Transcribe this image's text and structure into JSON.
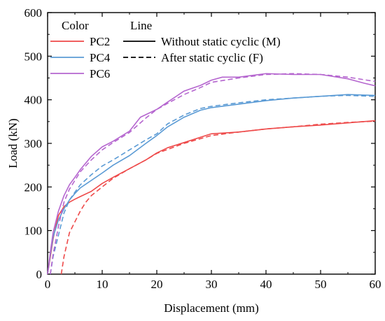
{
  "chart_data": {
    "type": "line",
    "xlabel": "Displacement (mm)",
    "ylabel": "Load (kN)",
    "xlim": [
      0,
      60
    ],
    "ylim": [
      0,
      600
    ],
    "x_ticks": [
      0,
      10,
      20,
      30,
      40,
      50,
      60
    ],
    "y_ticks": [
      0,
      100,
      200,
      300,
      400,
      500,
      600
    ],
    "grid": false,
    "legend": {
      "placement": "top-left",
      "color_header": "Color",
      "line_header": "Line",
      "color_entries": [
        {
          "label": "PC2",
          "color": "#ee4a4a"
        },
        {
          "label": "PC4",
          "color": "#5b9bd5"
        },
        {
          "label": "PC6",
          "color": "#b566cf"
        }
      ],
      "line_entries": [
        {
          "label": "Without static cyclic (M)",
          "style": "solid"
        },
        {
          "label": "After static cyclic (F)",
          "style": "dashed"
        }
      ]
    },
    "series": [
      {
        "specimen": "PC2",
        "condition": "M",
        "color": "#ee4a4a",
        "style": "solid",
        "points": [
          [
            0,
            0
          ],
          [
            0.5,
            40
          ],
          [
            1,
            80
          ],
          [
            1.5,
            110
          ],
          [
            2,
            135
          ],
          [
            3,
            155
          ],
          [
            4,
            165
          ],
          [
            5,
            172
          ],
          [
            6,
            178
          ],
          [
            8,
            190
          ],
          [
            10,
            208
          ],
          [
            12,
            222
          ],
          [
            15,
            242
          ],
          [
            18,
            262
          ],
          [
            20,
            278
          ],
          [
            22,
            290
          ],
          [
            25,
            302
          ],
          [
            28,
            314
          ],
          [
            30,
            322
          ],
          [
            35,
            326
          ],
          [
            40,
            333
          ],
          [
            45,
            338
          ],
          [
            50,
            342
          ],
          [
            55,
            347
          ],
          [
            60,
            352
          ]
        ]
      },
      {
        "specimen": "PC2",
        "condition": "F",
        "color": "#ee4a4a",
        "style": "dashed",
        "points": [
          [
            2.5,
            0
          ],
          [
            3,
            40
          ],
          [
            4,
            95
          ],
          [
            5,
            120
          ],
          [
            6,
            145
          ],
          [
            7,
            165
          ],
          [
            8,
            180
          ],
          [
            10,
            200
          ],
          [
            12,
            220
          ],
          [
            15,
            242
          ],
          [
            18,
            262
          ],
          [
            20,
            277
          ],
          [
            25,
            300
          ],
          [
            30,
            318
          ],
          [
            35,
            326
          ],
          [
            40,
            333
          ],
          [
            45,
            338
          ],
          [
            50,
            344
          ],
          [
            55,
            348
          ],
          [
            60,
            351
          ]
        ]
      },
      {
        "specimen": "PC4",
        "condition": "M",
        "color": "#5b9bd5",
        "style": "solid",
        "points": [
          [
            0,
            0
          ],
          [
            0.5,
            45
          ],
          [
            1,
            85
          ],
          [
            2,
            125
          ],
          [
            3,
            150
          ],
          [
            4,
            170
          ],
          [
            5,
            185
          ],
          [
            6,
            198
          ],
          [
            8,
            215
          ],
          [
            10,
            232
          ],
          [
            12,
            250
          ],
          [
            15,
            272
          ],
          [
            18,
            300
          ],
          [
            20,
            318
          ],
          [
            22,
            338
          ],
          [
            25,
            360
          ],
          [
            28,
            376
          ],
          [
            30,
            382
          ],
          [
            35,
            390
          ],
          [
            40,
            398
          ],
          [
            45,
            404
          ],
          [
            50,
            408
          ],
          [
            55,
            412
          ],
          [
            60,
            410
          ]
        ]
      },
      {
        "specimen": "PC4",
        "condition": "F",
        "color": "#5b9bd5",
        "style": "dashed",
        "points": [
          [
            0.5,
            0
          ],
          [
            1,
            40
          ],
          [
            2,
            90
          ],
          [
            3,
            140
          ],
          [
            4,
            170
          ],
          [
            5,
            188
          ],
          [
            6,
            205
          ],
          [
            8,
            228
          ],
          [
            10,
            248
          ],
          [
            12,
            262
          ],
          [
            15,
            285
          ],
          [
            18,
            308
          ],
          [
            20,
            322
          ],
          [
            22,
            345
          ],
          [
            25,
            365
          ],
          [
            28,
            380
          ],
          [
            30,
            385
          ],
          [
            35,
            393
          ],
          [
            40,
            400
          ],
          [
            45,
            404
          ],
          [
            50,
            408
          ],
          [
            55,
            410
          ],
          [
            60,
            408
          ]
        ]
      },
      {
        "specimen": "PC6",
        "condition": "M",
        "color": "#b566cf",
        "style": "solid",
        "points": [
          [
            0,
            0
          ],
          [
            0.5,
            50
          ],
          [
            1,
            95
          ],
          [
            2,
            145
          ],
          [
            3,
            180
          ],
          [
            4,
            205
          ],
          [
            5,
            222
          ],
          [
            6,
            240
          ],
          [
            8,
            270
          ],
          [
            10,
            292
          ],
          [
            12,
            305
          ],
          [
            15,
            328
          ],
          [
            17,
            360
          ],
          [
            20,
            378
          ],
          [
            22,
            395
          ],
          [
            25,
            420
          ],
          [
            28,
            433
          ],
          [
            30,
            445
          ],
          [
            32,
            452
          ],
          [
            35,
            452
          ],
          [
            40,
            460
          ],
          [
            45,
            458
          ],
          [
            50,
            458
          ],
          [
            55,
            448
          ],
          [
            58,
            438
          ],
          [
            60,
            432
          ]
        ]
      },
      {
        "specimen": "PC6",
        "condition": "F",
        "color": "#b566cf",
        "style": "dashed",
        "points": [
          [
            0.5,
            0
          ],
          [
            1,
            45
          ],
          [
            2,
            110
          ],
          [
            3,
            165
          ],
          [
            4,
            195
          ],
          [
            5,
            215
          ],
          [
            6,
            235
          ],
          [
            8,
            262
          ],
          [
            10,
            285
          ],
          [
            12,
            302
          ],
          [
            15,
            325
          ],
          [
            18,
            358
          ],
          [
            20,
            378
          ],
          [
            22,
            392
          ],
          [
            25,
            412
          ],
          [
            28,
            428
          ],
          [
            30,
            440
          ],
          [
            35,
            450
          ],
          [
            40,
            458
          ],
          [
            45,
            460
          ],
          [
            50,
            458
          ],
          [
            55,
            452
          ],
          [
            60,
            442
          ]
        ]
      }
    ]
  }
}
